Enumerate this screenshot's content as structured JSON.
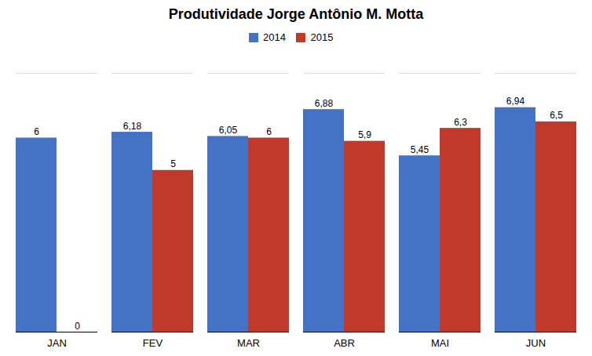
{
  "chart_data": {
    "type": "bar",
    "title": "Produtividade Jorge Antônio M. Motta",
    "categories": [
      "JAN",
      "FEV",
      "MAR",
      "ABR",
      "MAI",
      "JUN"
    ],
    "series": [
      {
        "name": "2014",
        "color": "#4472C4",
        "values": [
          6,
          6.18,
          6.05,
          6.88,
          5.45,
          6.94
        ],
        "value_labels": [
          "6",
          "6,18",
          "6,05",
          "6,88",
          "5,45",
          "6,94"
        ]
      },
      {
        "name": "2015",
        "color": "#C0392B",
        "values": [
          0,
          5,
          6,
          5.9,
          6.3,
          6.5
        ],
        "value_labels": [
          "0",
          "5",
          "6",
          "5,9",
          "6,3",
          "6,5"
        ]
      }
    ],
    "ylim": [
      0,
      8
    ],
    "yticks": [],
    "grid": false,
    "data_labels": true,
    "tick_labels": "x",
    "legend": "top"
  }
}
